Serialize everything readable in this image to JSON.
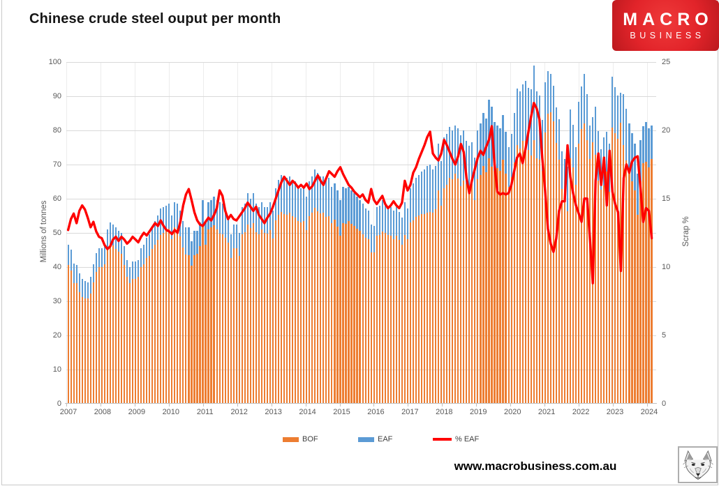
{
  "page": {
    "title": "Chinese crude steel ouput per month",
    "website": "www.macrobusiness.com.au",
    "logo": {
      "line1": "MACRO",
      "line2": "BUSINESS",
      "bg_color": "#e2242a"
    }
  },
  "chart_data": {
    "type": "combo",
    "bar_style": "stacked-monthly-columns",
    "title": "Chinese crude steel ouput per month",
    "left_axis": {
      "label": "Millions of tonnes",
      "min": 0,
      "max": 100,
      "tick_step": 10
    },
    "right_axis": {
      "label": "Scrap %",
      "min": 0,
      "max": 25,
      "tick_step": 5
    },
    "x_axis": {
      "unit": "month",
      "start": "2007-01",
      "end": "2024-05",
      "year_labels": [
        "2007",
        "2008",
        "2009",
        "2010",
        "2011",
        "2012",
        "2013",
        "2014",
        "2015",
        "2016",
        "2017",
        "2018",
        "2019",
        "2020",
        "2021",
        "2022",
        "2023",
        "2024"
      ]
    },
    "legend": [
      {
        "label": "BOF",
        "color": "#ED7D31",
        "kind": "bar"
      },
      {
        "label": "EAF",
        "color": "#5B9BD5",
        "kind": "bar"
      },
      {
        "label": "% EAF",
        "color": "#FF0000",
        "kind": "line"
      }
    ],
    "grid": {
      "horizontal": true,
      "vertical_year_lines": true
    },
    "series_semantics": "Bars are stacked monthly totals: BOF = total_output_mt x (1 - eaf_share_pct/100), EAF = total_output_mt x eaf_share_pct/100. Red line (% EAF) plots eaf_share_pct on the right axis.",
    "total_output_mt": [
      46.5,
      45.0,
      41.0,
      40.5,
      38.0,
      36.5,
      35.8,
      35.5,
      37.0,
      40.8,
      44.0,
      45.5,
      45.5,
      46.0,
      51.0,
      53.0,
      52.5,
      51.5,
      50.5,
      50.0,
      46.0,
      42.0,
      40.0,
      41.5,
      41.5,
      42.0,
      45.5,
      46.5,
      48.5,
      49.5,
      52.0,
      53.5,
      55.0,
      57.0,
      57.5,
      58.0,
      58.5,
      55.0,
      59.0,
      58.5,
      56.5,
      53.5,
      51.5,
      51.5,
      47.5,
      50.5,
      50.5,
      53.0,
      59.5,
      53.5,
      59.0,
      59.5,
      60.5,
      59.5,
      59.0,
      58.5,
      56.5,
      54.5,
      49.5,
      52.5,
      52.5,
      50.0,
      57.5,
      58.5,
      61.5,
      60.0,
      61.5,
      58.5,
      57.5,
      59.0,
      57.5,
      57.5,
      59.0,
      56.5,
      63.0,
      65.5,
      67.0,
      66.5,
      66.0,
      66.5,
      65.5,
      65.0,
      63.5,
      63.0,
      63.5,
      60.5,
      65.0,
      66.5,
      68.5,
      67.5,
      66.5,
      66.5,
      65.5,
      66.0,
      63.5,
      64.5,
      62.5,
      59.5,
      63.5,
      63.0,
      63.5,
      62.5,
      61.5,
      60.5,
      59.5,
      58.5,
      57.0,
      56.5,
      52.5,
      52.0,
      57.5,
      58.0,
      59.5,
      58.5,
      57.5,
      57.5,
      56.5,
      57.5,
      56.0,
      54.5,
      59.0,
      57.0,
      63.0,
      64.5,
      66.0,
      67.0,
      68.0,
      68.5,
      69.5,
      70.0,
      68.5,
      69.5,
      76.0,
      71.0,
      78.0,
      79.0,
      81.0,
      80.0,
      81.5,
      80.5,
      78.5,
      80.0,
      77.0,
      75.5,
      76.5,
      72.0,
      80.0,
      82.0,
      85.0,
      83.5,
      89.0,
      87.0,
      82.5,
      81.5,
      80.5,
      84.5,
      79.5,
      75.0,
      79.0,
      85.0,
      92.3,
      91.5,
      93.4,
      94.5,
      92.5,
      92.0,
      99.0,
      91.5,
      90.2,
      83.0,
      94.0,
      97.3,
      96.5,
      93.0,
      86.8,
      83.2,
      73.8,
      71.6,
      69.3,
      86.2,
      81.7,
      75.0,
      88.3,
      92.8,
      96.6,
      90.7,
      81.4,
      83.9,
      87.0,
      79.8,
      74.5,
      77.9,
      79.5,
      76.0,
      95.7,
      92.6,
      90.1,
      91.1,
      90.6,
      86.4,
      82.1,
      79.1,
      76.1,
      67.4,
      77.2,
      81.2,
      82.5,
      80.5,
      81.5
    ],
    "eaf_share_pct": [
      12.7,
      13.5,
      13.9,
      13.2,
      14.1,
      14.5,
      14.2,
      13.6,
      12.9,
      13.3,
      12.6,
      12.2,
      12.1,
      11.6,
      11.3,
      11.5,
      12.0,
      12.2,
      11.9,
      12.2,
      12.0,
      11.7,
      11.9,
      12.2,
      12.0,
      11.8,
      12.2,
      12.5,
      12.3,
      12.6,
      12.9,
      13.2,
      13.0,
      13.4,
      13.0,
      12.7,
      12.6,
      12.4,
      12.7,
      12.5,
      13.3,
      14.5,
      15.3,
      15.7,
      14.9,
      14.0,
      13.4,
      13.1,
      13.0,
      13.3,
      13.6,
      13.4,
      13.8,
      14.3,
      15.6,
      15.2,
      14.1,
      13.5,
      13.8,
      13.5,
      13.4,
      13.7,
      14.0,
      14.3,
      14.7,
      14.4,
      14.1,
      14.4,
      13.8,
      13.5,
      13.2,
      13.6,
      13.9,
      14.4,
      15.0,
      15.6,
      16.2,
      16.6,
      16.3,
      16.0,
      16.3,
      16.1,
      15.8,
      16.0,
      15.8,
      16.1,
      15.7,
      15.9,
      16.3,
      16.7,
      16.3,
      16.0,
      16.5,
      17.0,
      16.8,
      16.6,
      17.0,
      17.3,
      16.8,
      16.4,
      16.0,
      15.8,
      15.5,
      15.3,
      15.1,
      15.3,
      14.9,
      14.7,
      15.7,
      14.9,
      14.6,
      14.9,
      15.2,
      14.6,
      14.3,
      14.5,
      14.8,
      14.5,
      14.3,
      14.7,
      16.3,
      15.6,
      16.0,
      16.9,
      17.3,
      17.9,
      18.4,
      18.9,
      19.5,
      19.9,
      18.3,
      18.0,
      17.8,
      18.3,
      19.3,
      18.9,
      18.4,
      17.9,
      17.5,
      18.1,
      19.0,
      18.4,
      16.5,
      15.4,
      16.4,
      17.2,
      18.0,
      18.5,
      18.2,
      18.8,
      19.3,
      20.3,
      17.5,
      15.5,
      15.3,
      15.4,
      15.3,
      15.4,
      16.0,
      17.0,
      18.0,
      18.3,
      17.6,
      18.6,
      19.8,
      21.0,
      22.0,
      21.6,
      20.8,
      18.0,
      15.6,
      12.8,
      11.7,
      11.1,
      12.1,
      14.1,
      14.8,
      14.8,
      18.9,
      16.6,
      15.4,
      14.5,
      13.9,
      13.3,
      15.0,
      15.0,
      12.0,
      8.8,
      16.3,
      18.3,
      16.0,
      18.0,
      14.5,
      18.5,
      15.5,
      14.6,
      14.0,
      9.7,
      16.5,
      17.5,
      16.9,
      17.7,
      18.0,
      18.1,
      15.8,
      13.3,
      14.3,
      14.1,
      12.1
    ]
  },
  "colors": {
    "bof": "#ED7D31",
    "eaf": "#5B9BD5",
    "pct_line": "#FF0000",
    "gridline": "#d9d9d9",
    "axis_text": "#595959"
  }
}
